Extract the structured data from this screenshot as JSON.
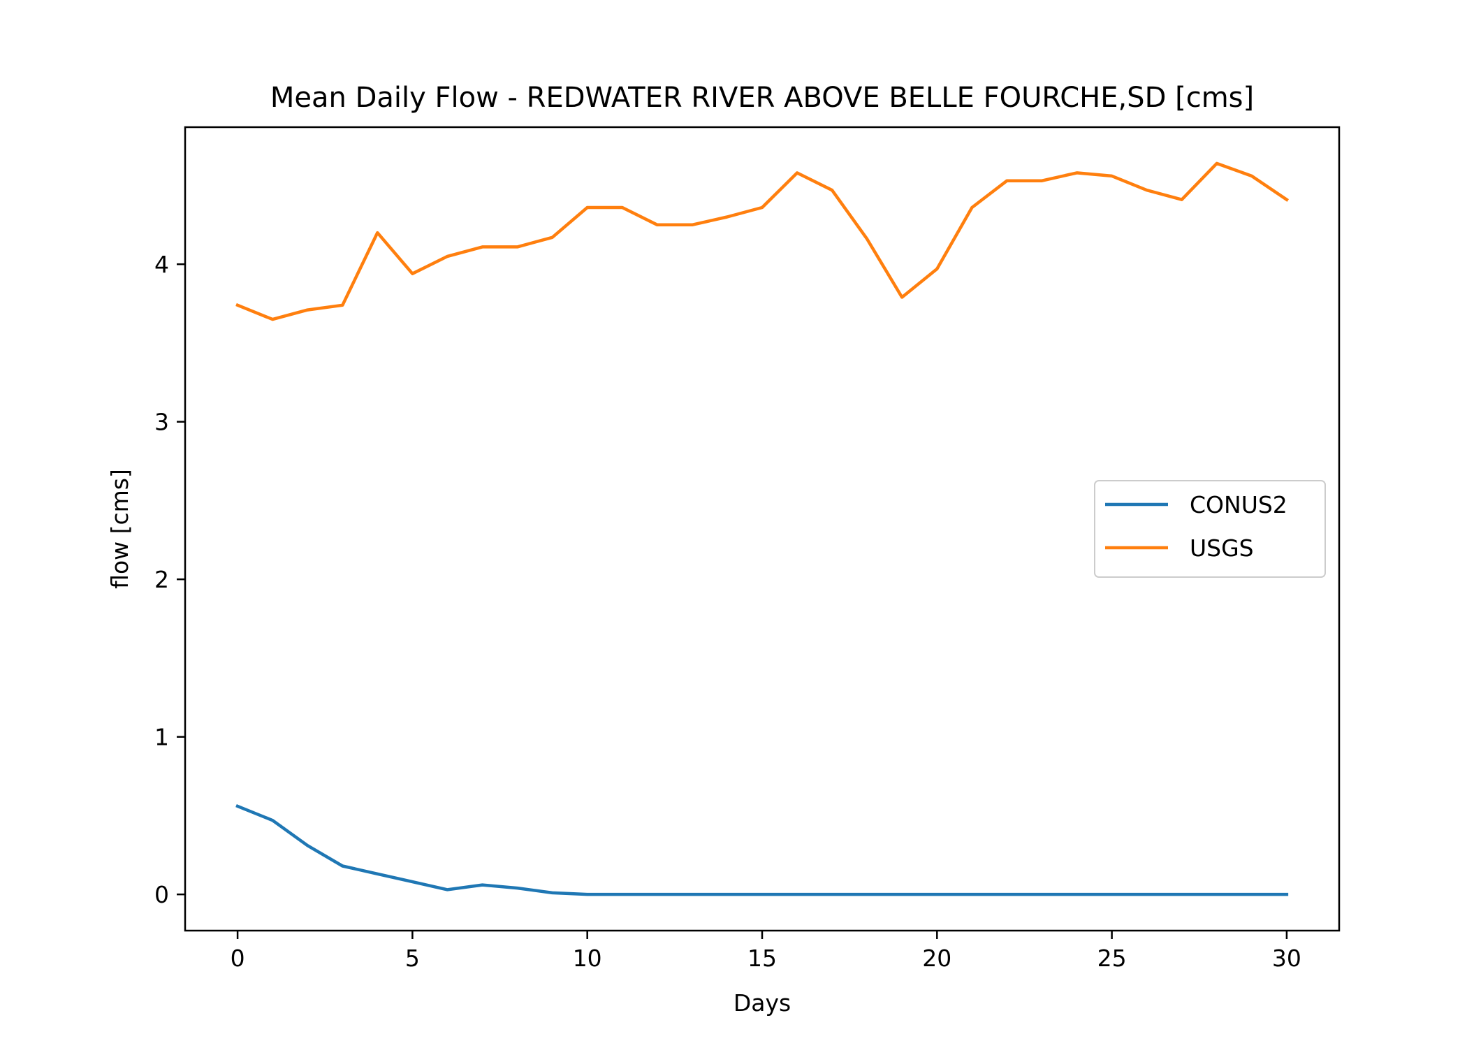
{
  "chart_data": {
    "type": "line",
    "title": "Mean Daily Flow - REDWATER RIVER ABOVE BELLE FOURCHE,SD [cms]",
    "xlabel": "Days",
    "ylabel": "flow [cms]",
    "xlim": [
      -1.5,
      31.5
    ],
    "ylim": [
      -0.23,
      4.87
    ],
    "xticks": [
      0,
      5,
      10,
      15,
      20,
      25,
      30
    ],
    "yticks": [
      0,
      1,
      2,
      3,
      4
    ],
    "grid": false,
    "legend_position": "center-right",
    "x": [
      0,
      1,
      2,
      3,
      4,
      5,
      6,
      7,
      8,
      9,
      10,
      11,
      12,
      13,
      14,
      15,
      16,
      17,
      18,
      19,
      20,
      21,
      22,
      23,
      24,
      25,
      26,
      27,
      28,
      29,
      30
    ],
    "series": [
      {
        "name": "CONUS2",
        "color": "#1f77b4",
        "values": [
          0.56,
          0.47,
          0.31,
          0.18,
          0.13,
          0.08,
          0.03,
          0.06,
          0.04,
          0.01,
          0.0,
          0.0,
          0.0,
          0.0,
          0.0,
          0.0,
          0.0,
          0.0,
          0.0,
          0.0,
          0.0,
          0.0,
          0.0,
          0.0,
          0.0,
          0.0,
          0.0,
          0.0,
          0.0,
          0.0,
          0.0
        ]
      },
      {
        "name": "USGS",
        "color": "#ff7f0e",
        "values": [
          3.74,
          3.65,
          3.71,
          3.74,
          4.2,
          3.94,
          4.05,
          4.11,
          4.11,
          4.17,
          4.36,
          4.36,
          4.25,
          4.25,
          4.3,
          4.36,
          4.58,
          4.47,
          4.16,
          3.79,
          3.97,
          4.36,
          4.53,
          4.53,
          4.58,
          4.56,
          4.47,
          4.41,
          4.64,
          4.56,
          4.41
        ]
      }
    ]
  }
}
